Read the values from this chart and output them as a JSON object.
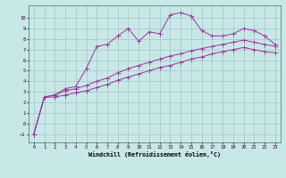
{
  "xlabel": "Windchill (Refroidissement éolien,°C)",
  "xlim": [
    -0.5,
    23.5
  ],
  "ylim": [
    -1.8,
    11.2
  ],
  "xticks": [
    0,
    1,
    2,
    3,
    4,
    5,
    6,
    7,
    8,
    9,
    10,
    11,
    12,
    13,
    14,
    15,
    16,
    17,
    18,
    19,
    20,
    21,
    22,
    23
  ],
  "yticks": [
    -1,
    0,
    1,
    2,
    3,
    4,
    5,
    6,
    7,
    8,
    9,
    10
  ],
  "bg_color": "#c8e8e8",
  "grid_color": "#9bbcbc",
  "line_color": "#993399",
  "line1_x": [
    0,
    1,
    2,
    3,
    4,
    5,
    6,
    7,
    8,
    9,
    10,
    11,
    12,
    13,
    14,
    15,
    16,
    17,
    18,
    19,
    20,
    21,
    22,
    23
  ],
  "line1_y": [
    -1.0,
    2.5,
    2.7,
    3.3,
    3.5,
    5.2,
    7.3,
    7.5,
    8.3,
    9.0,
    7.8,
    8.7,
    8.5,
    10.3,
    10.5,
    10.2,
    8.8,
    8.3,
    8.3,
    8.5,
    9.0,
    8.8,
    8.3,
    7.5
  ],
  "line2_x": [
    0,
    1,
    2,
    3,
    4,
    5,
    6,
    7,
    8,
    9,
    10,
    11,
    12,
    13,
    14,
    15,
    16,
    17,
    18,
    19,
    20,
    21,
    22,
    23
  ],
  "line2_y": [
    -1.0,
    2.5,
    2.7,
    3.1,
    3.3,
    3.6,
    4.0,
    4.3,
    4.8,
    5.2,
    5.5,
    5.8,
    6.1,
    6.4,
    6.6,
    6.9,
    7.1,
    7.3,
    7.5,
    7.7,
    7.9,
    7.7,
    7.5,
    7.3
  ],
  "line3_x": [
    0,
    1,
    2,
    3,
    4,
    5,
    6,
    7,
    8,
    9,
    10,
    11,
    12,
    13,
    14,
    15,
    16,
    17,
    18,
    19,
    20,
    21,
    22,
    23
  ],
  "line3_y": [
    -1.0,
    2.5,
    2.5,
    2.7,
    2.9,
    3.1,
    3.4,
    3.7,
    4.1,
    4.4,
    4.7,
    5.0,
    5.3,
    5.5,
    5.8,
    6.1,
    6.3,
    6.6,
    6.8,
    7.0,
    7.2,
    7.0,
    6.8,
    6.7
  ],
  "marker_size": 1.8,
  "linewidth": 0.7,
  "tick_fontsize": 4.0,
  "xlabel_fontsize": 4.8
}
